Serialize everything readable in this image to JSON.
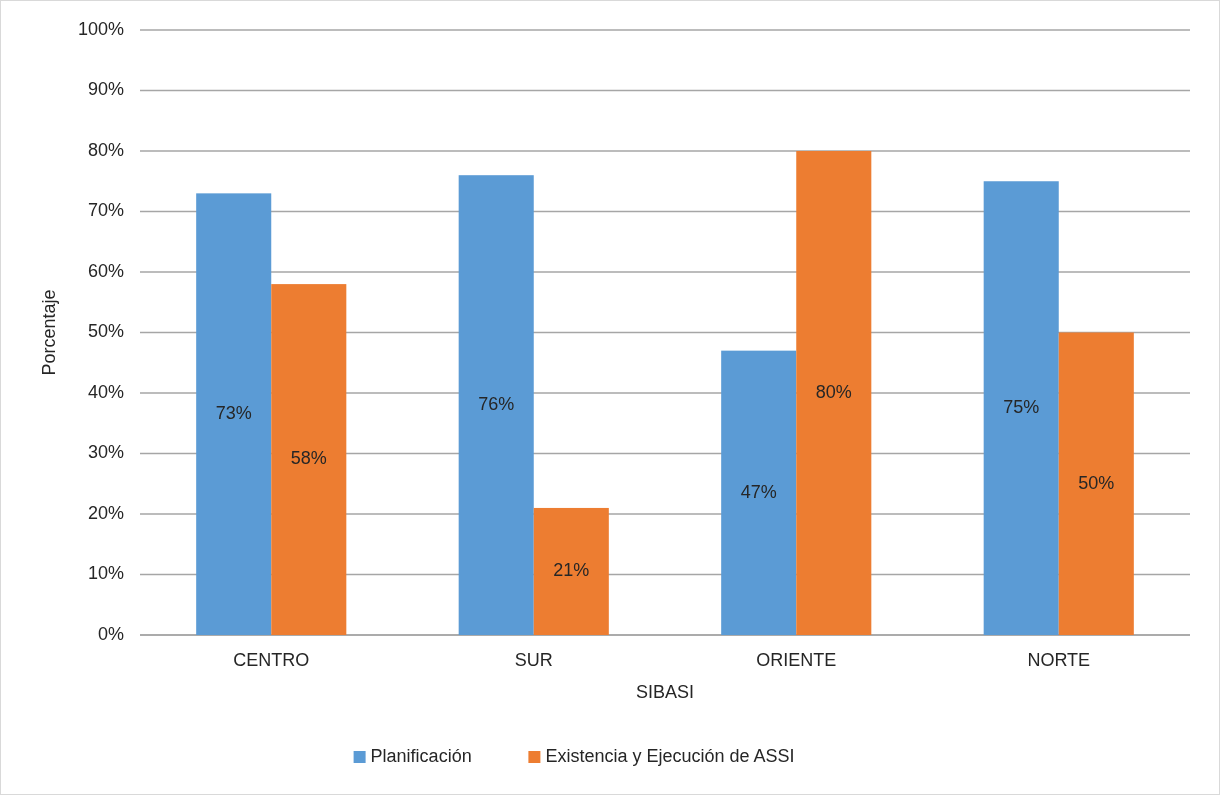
{
  "chart_data": {
    "type": "bar",
    "xlabel": "SIBASI",
    "ylabel": "Porcentaje",
    "categories": [
      "CENTRO",
      "SUR",
      "ORIENTE",
      "NORTE"
    ],
    "series": [
      {
        "name": "Planificación",
        "color": "#5b9bd5",
        "values": [
          73,
          76,
          47,
          75
        ],
        "value_labels": [
          "73%",
          "76%",
          "47%",
          "75%"
        ]
      },
      {
        "name": "Existencia y Ejecución de ASSI",
        "color": "#ed7d31",
        "values": [
          58,
          21,
          80,
          50
        ],
        "value_labels": [
          "58%",
          "21%",
          "80%",
          "50%"
        ]
      }
    ],
    "ylim": [
      0,
      100
    ],
    "yticks": [
      {
        "value": 0,
        "label": "0%"
      },
      {
        "value": 10,
        "label": "10%"
      },
      {
        "value": 20,
        "label": "20%"
      },
      {
        "value": 30,
        "label": "30%"
      },
      {
        "value": 40,
        "label": "40%"
      },
      {
        "value": 50,
        "label": "50%"
      },
      {
        "value": 60,
        "label": "60%"
      },
      {
        "value": 70,
        "label": "70%"
      },
      {
        "value": 80,
        "label": "80%"
      },
      {
        "value": 90,
        "label": "90%"
      },
      {
        "value": 100,
        "label": "100%"
      }
    ],
    "grid": "y",
    "legend": "bottom"
  }
}
